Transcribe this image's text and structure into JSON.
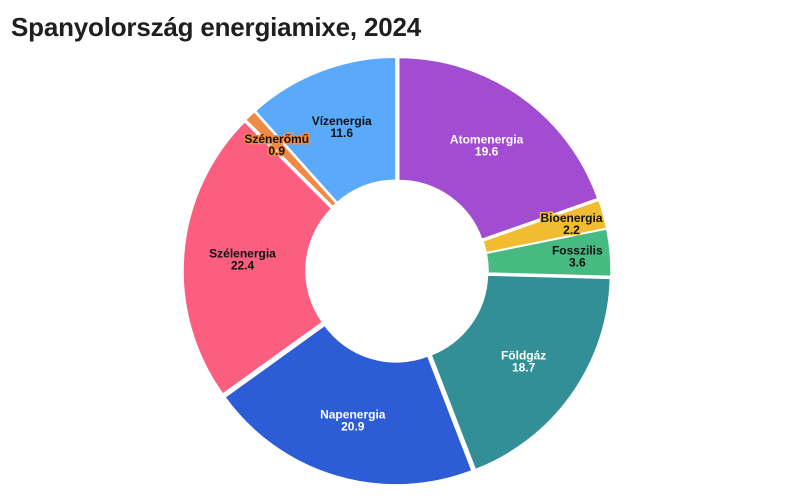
{
  "chart_data": {
    "type": "pie",
    "donut": true,
    "title": "Spanyolország energiamixe, 2024",
    "unit": "",
    "slices": [
      {
        "label": "Atomenergia",
        "value": 19.6,
        "display": "19.6",
        "color": "#a24dd1",
        "text_color": "#ffffff"
      },
      {
        "label": "Bioenergia",
        "value": 2.2,
        "display": "2.2",
        "color": "#f1bb32",
        "text_color": "#111111"
      },
      {
        "label": "Fosszilis",
        "value": 3.6,
        "display": "3.6",
        "color": "#47ba81",
        "text_color": "#111111"
      },
      {
        "label": "Földgáz",
        "value": 18.7,
        "display": "18.7",
        "color": "#328f96",
        "text_color": "#ffffff"
      },
      {
        "label": "Napenergia",
        "value": 20.9,
        "display": "20.9",
        "color": "#2c5cd6",
        "text_color": "#ffffff"
      },
      {
        "label": "Szélenergia",
        "value": 22.4,
        "display": "22.4",
        "color": "#fb5e7f",
        "text_color": "#111111"
      },
      {
        "label": "Szénerőmű",
        "value": 0.9,
        "display": "0.9",
        "color": "#ef8a45",
        "text_color": "#111111"
      },
      {
        "label": "Vízenergia",
        "value": 11.6,
        "display": "11.6",
        "color": "#5ba9fa",
        "text_color": "#111111"
      }
    ],
    "legend": "none"
  }
}
